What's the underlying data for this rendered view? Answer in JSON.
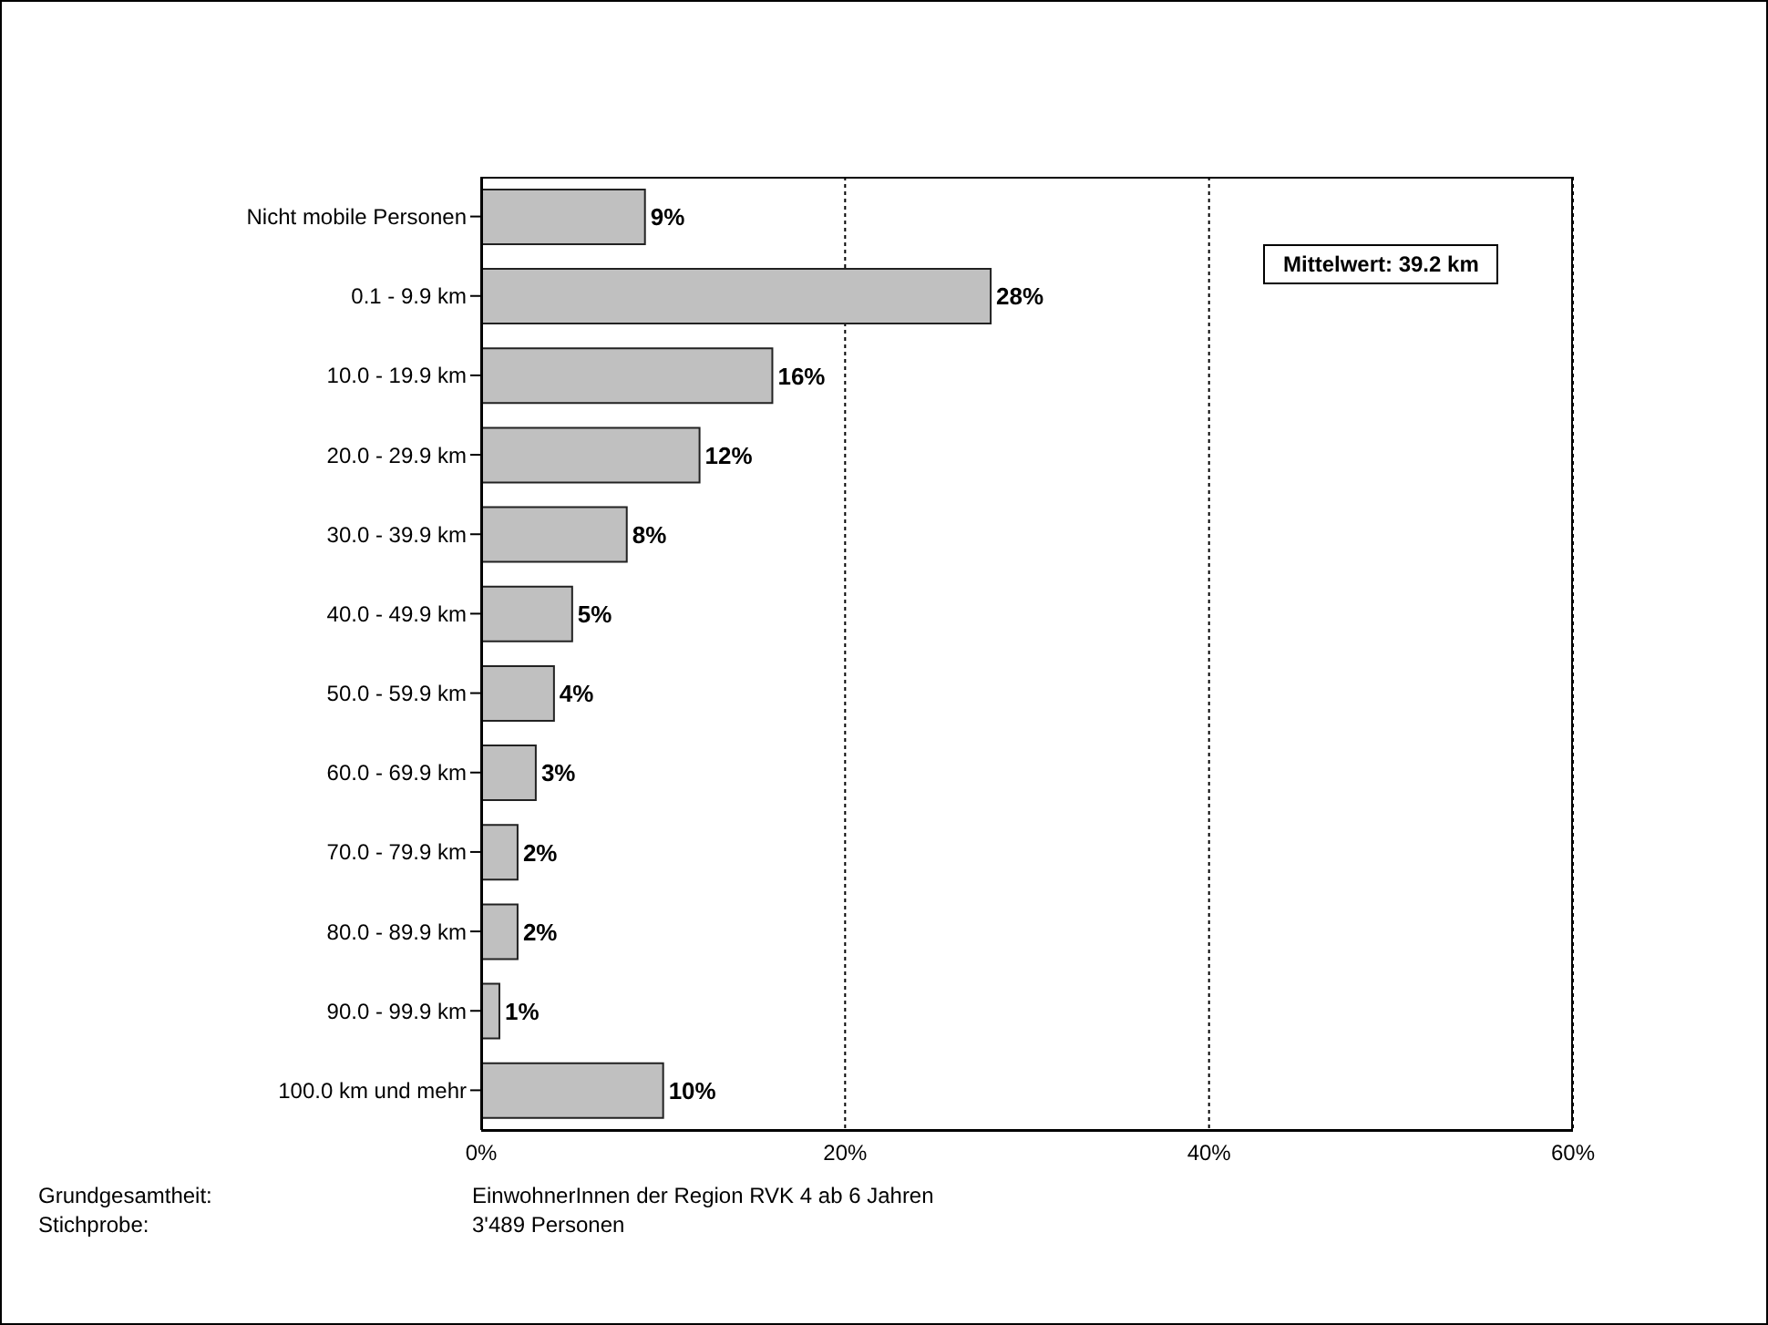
{
  "chart_data": {
    "type": "bar",
    "orientation": "horizontal",
    "categories": [
      "Nicht mobile Personen",
      "0.1 - 9.9 km",
      "10.0 - 19.9 km",
      "20.0 - 29.9 km",
      "30.0 - 39.9 km",
      "40.0 - 49.9 km",
      "50.0 - 59.9 km",
      "60.0 - 69.9 km",
      "70.0 - 79.9 km",
      "80.0 - 89.9 km",
      "90.0 - 99.9 km",
      "100.0 km und mehr"
    ],
    "values": [
      9,
      28,
      16,
      12,
      8,
      5,
      4,
      3,
      2,
      2,
      1,
      10
    ],
    "value_labels": [
      "9%",
      "28%",
      "16%",
      "12%",
      "8%",
      "5%",
      "4%",
      "3%",
      "2%",
      "2%",
      "1%",
      "10%"
    ],
    "color": "#c0c0c0",
    "xlim": [
      0,
      60
    ],
    "xticks": [
      {
        "value": 0,
        "label": "0%"
      },
      {
        "value": 20,
        "label": "20%"
      },
      {
        "value": 40,
        "label": "40%"
      },
      {
        "value": 60,
        "label": "60%"
      }
    ],
    "grid": "x",
    "annotations": [
      "Mittelwert: 39.2 km",
      "Grundgesamtheit:",
      "EinwohnerInnen der Region RVK 4 ab 6 Jahren",
      "Stichprobe:",
      "3'489 Personen"
    ]
  }
}
